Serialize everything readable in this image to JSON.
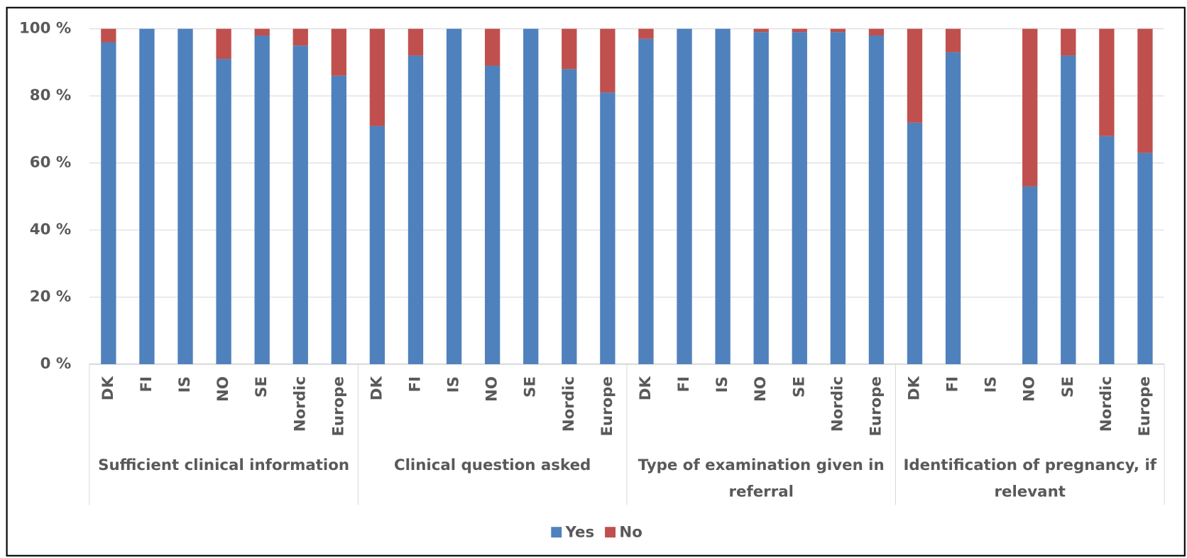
{
  "chart_data": {
    "type": "stacked_bar",
    "groups": [
      "Sufficient clinical information",
      "Clinical question asked",
      "Type of examination given in referral",
      "Identification of pregnancy, if relevant"
    ],
    "categories": [
      "DK",
      "FI",
      "IS",
      "NO",
      "SE",
      "Nordic",
      "Europe",
      "DK",
      "FI",
      "IS",
      "NO",
      "SE",
      "Nordic",
      "Europe",
      "DK",
      "FI",
      "IS",
      "NO",
      "SE",
      "Nordic",
      "Europe",
      "DK",
      "FI",
      "IS",
      "NO",
      "SE",
      "Nordic",
      "Europe"
    ],
    "series": [
      {
        "name": "Yes",
        "color": "#4f81bd",
        "values": [
          96,
          100,
          100,
          91,
          98,
          95,
          86,
          71,
          92,
          100,
          89,
          100,
          88,
          81,
          97,
          100,
          100,
          99,
          99,
          99,
          98,
          72,
          93,
          null,
          53,
          92,
          68,
          63
        ]
      },
      {
        "name": "No",
        "color": "#c0504d",
        "values": [
          4,
          0,
          0,
          9,
          2,
          5,
          14,
          29,
          8,
          0,
          11,
          0,
          12,
          19,
          3,
          0,
          0,
          1,
          1,
          1,
          2,
          28,
          7,
          null,
          47,
          8,
          32,
          37
        ]
      }
    ],
    "ylim": [
      0,
      100
    ],
    "yticks": [
      {
        "value": 0,
        "label": "0 %"
      },
      {
        "value": 20,
        "label": "20 %"
      },
      {
        "value": 40,
        "label": "40 %"
      },
      {
        "value": 60,
        "label": "60 %"
      },
      {
        "value": 80,
        "label": "80 %"
      },
      {
        "value": 100,
        "label": "100 %"
      }
    ],
    "grid": true,
    "legend": "bottom"
  }
}
